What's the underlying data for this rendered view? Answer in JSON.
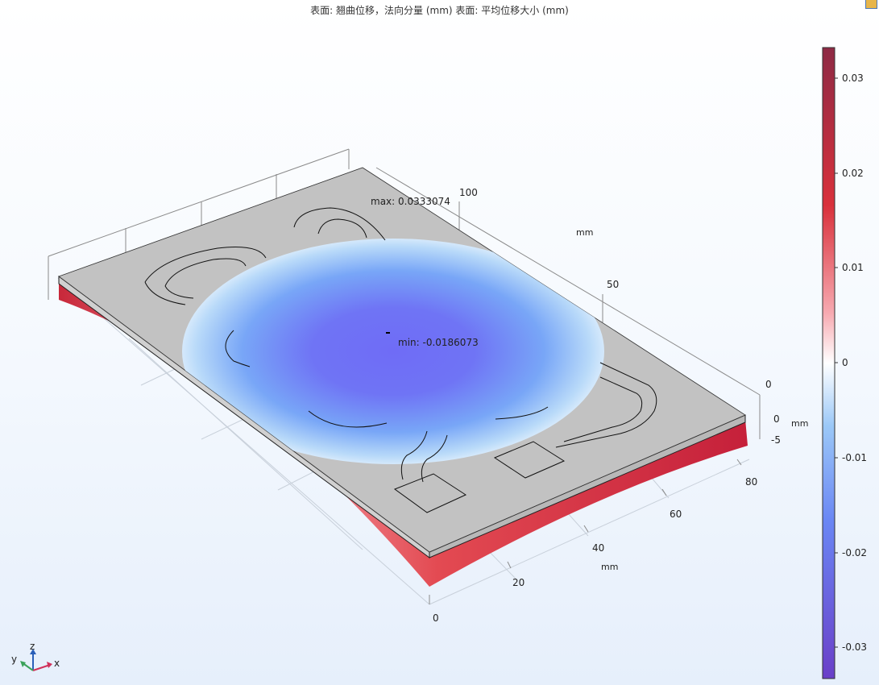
{
  "plot": {
    "title": "表面: 翘曲位移，法向分量 (mm)  表面: 平均位移大小 (mm)",
    "max_label": "max: 0.0333074",
    "min_label": "min: -0.0186073"
  },
  "axes": {
    "y_ticks": [
      "100",
      "50"
    ],
    "y_unit": "mm",
    "x_ticks": [
      "0",
      "20",
      "40",
      "60",
      "80"
    ],
    "x_unit": "mm",
    "z_ticks": [
      "0",
      "0",
      "-5"
    ],
    "z_unit": "mm"
  },
  "triad": {
    "x": "x",
    "y": "y",
    "z": "z"
  },
  "colorbar": {
    "ticks": [
      "0.03",
      "0.02",
      "0.01",
      "0",
      "-0.01",
      "-0.02",
      "-0.03"
    ],
    "range": [
      -0.0333,
      0.0333
    ],
    "colors": [
      "#8e2a45",
      "#d9313b",
      "#f48e97",
      "#ffffff",
      "#7aaaf5",
      "#6a63f0",
      "#6a3fc8"
    ]
  },
  "icons": {
    "corner": "toolbar-corner-icon"
  }
}
